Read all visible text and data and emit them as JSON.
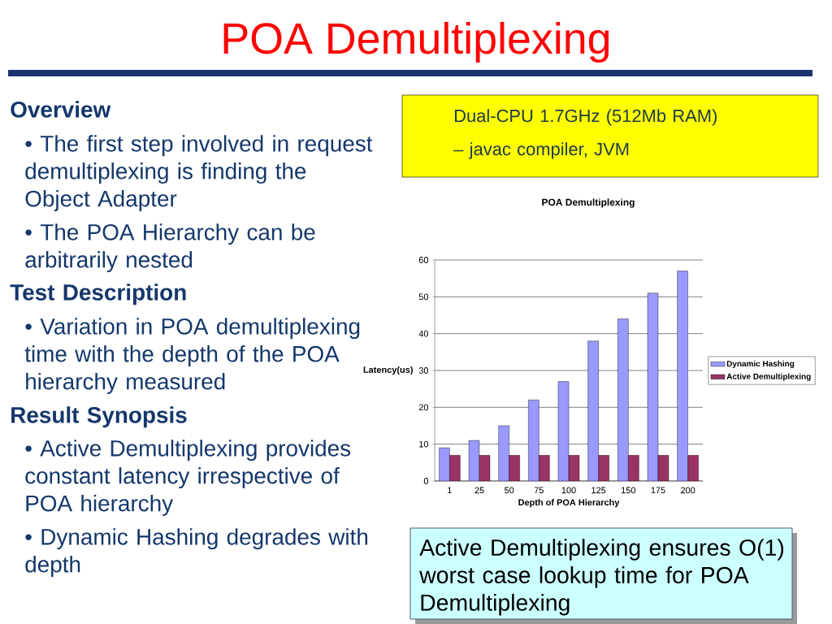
{
  "chart_data": {
    "type": "bar",
    "title": "POA Demultiplexing",
    "subtitle": "POA Demultiplexing",
    "xlabel": "Depth of POA Hierarchy",
    "ylabel": "Latency(us)",
    "categories": [
      "1",
      "25",
      "50",
      "75",
      "100",
      "125",
      "150",
      "175",
      "200"
    ],
    "series": [
      {
        "name": "Dynamic Hashing",
        "color": "#9999ff",
        "values": [
          9,
          11,
          15,
          22,
          27,
          38,
          44,
          51,
          57
        ]
      },
      {
        "name": "Active Demultiplexing",
        "color": "#993366",
        "values": [
          7,
          7,
          7,
          7,
          7,
          7,
          7,
          7,
          7
        ]
      }
    ],
    "ylim": [
      0,
      60
    ],
    "yticks": [
      0,
      10,
      20,
      30,
      40,
      50,
      60
    ],
    "grid": "y",
    "legend": "right",
    "annotations": [
      "Overview",
      "• The first step involved in request demultiplexing is finding the Object Adapter",
      "• The POA Hierarchy can be arbitrarily nested",
      "Test Description",
      "• Variation in POA demultiplexing time with the depth of the POA hierarchy measured",
      "Result Synopsis",
      "• Active Demultiplexing provides constant latency irrespective of POA hierarchy",
      "• Dynamic Hashing degrades with depth",
      "Dual-CPU 1.7GHz (512Mb RAM)",
      "– javac compiler, JVM",
      "Active Demultiplexing ensures O(1) worst case lookup time for POA Demultiplexing"
    ]
  }
}
